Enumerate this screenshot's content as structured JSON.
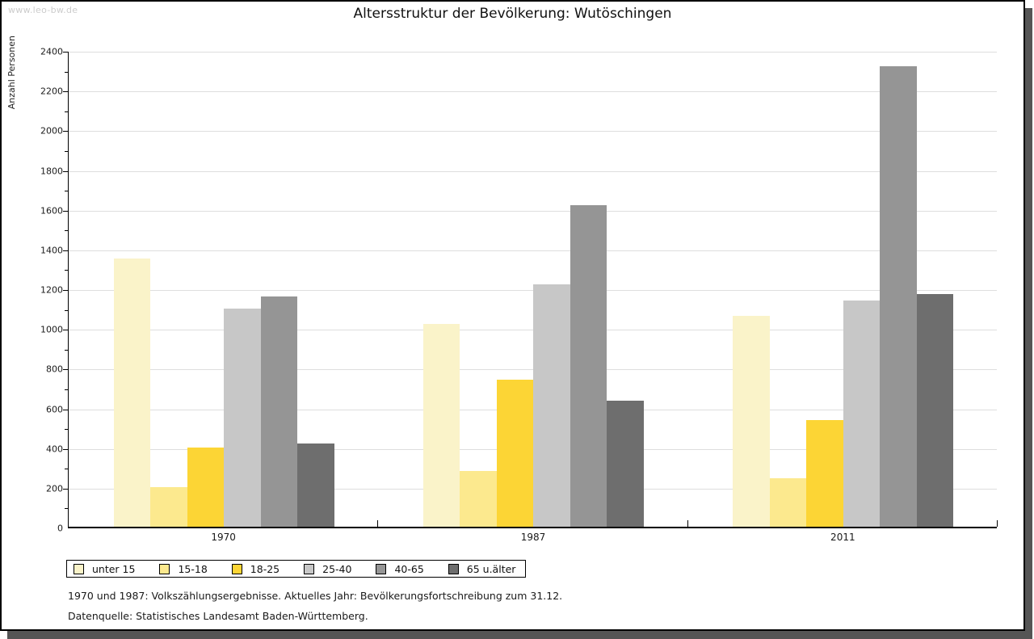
{
  "watermark": "www.leo-bw.de",
  "title": "Altersstruktur der Bevölkerung: Wutöschingen",
  "footer": {
    "line1": "1970 und 1987: Volkszählungsergebnisse. Aktuelles Jahr: Bevölkerungsfortschreibung zum 31.12.",
    "line2": "Datenquelle: Statistisches Landesamt Baden-Württemberg."
  },
  "chart_data": {
    "type": "bar",
    "title": "Altersstruktur der Bevölkerung: Wutöschingen",
    "ylabel": "Anzahl Personen",
    "xlabel": "",
    "categories": [
      "1970",
      "1987",
      "2011"
    ],
    "series": [
      {
        "name": "unter 15",
        "color": "#faf3c9",
        "values": [
          1350,
          1020,
          1060
        ]
      },
      {
        "name": "15-18",
        "color": "#fce98e",
        "values": [
          200,
          280,
          245
        ]
      },
      {
        "name": "18-25",
        "color": "#fcd535",
        "values": [
          400,
          740,
          535
        ]
      },
      {
        "name": "25-40",
        "color": "#c7c7c7",
        "values": [
          1100,
          1220,
          1140
        ]
      },
      {
        "name": "40-65",
        "color": "#959595",
        "values": [
          1160,
          1620,
          2320
        ]
      },
      {
        "name": "65 u.älter",
        "color": "#6e6e6e",
        "values": [
          420,
          635,
          1170
        ]
      }
    ],
    "ylim": [
      0,
      2400
    ],
    "ytick_step": 200,
    "ytick_minor_step": 100,
    "grid": true,
    "legend_position": "bottom"
  }
}
